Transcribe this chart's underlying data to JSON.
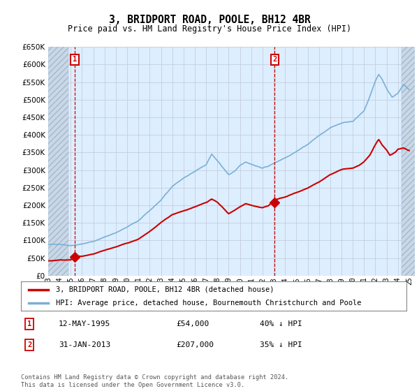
{
  "title": "3, BRIDPORT ROAD, POOLE, BH12 4BR",
  "subtitle": "Price paid vs. HM Land Registry's House Price Index (HPI)",
  "legend_line1": "3, BRIDPORT ROAD, POOLE, BH12 4BR (detached house)",
  "legend_line2": "HPI: Average price, detached house, Bournemouth Christchurch and Poole",
  "sale1_date": "12-MAY-1995",
  "sale1_price": "£54,000",
  "sale1_hpi": "40% ↓ HPI",
  "sale1_x": 1995.36,
  "sale1_y": 54000,
  "sale2_date": "31-JAN-2013",
  "sale2_price": "£207,000",
  "sale2_hpi": "35% ↓ HPI",
  "sale2_x": 2013.08,
  "sale2_y": 207000,
  "ylim": [
    0,
    650000
  ],
  "yticks": [
    0,
    50000,
    100000,
    150000,
    200000,
    250000,
    300000,
    350000,
    400000,
    450000,
    500000,
    550000,
    600000,
    650000
  ],
  "xlim": [
    1993.0,
    2025.5
  ],
  "data_xmin": 1995.0,
  "data_xmax": 2024.5,
  "line_color_red": "#cc0000",
  "line_color_blue": "#7ab0d4",
  "marker_color_red": "#cc0000",
  "bg_color": "#ddeeff",
  "hatch_bg_color": "#c8d8e8",
  "grid_color": "#c0c8d8",
  "vline_color": "#cc0000",
  "box_color": "#cc0000",
  "footer": "Contains HM Land Registry data © Crown copyright and database right 2024.\nThis data is licensed under the Open Government Licence v3.0."
}
